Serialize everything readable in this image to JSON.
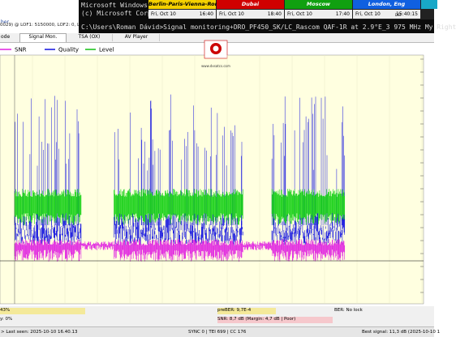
{
  "app": {
    "title_fragment": "her",
    "info": "0029) @ LOF1: 5150000, LOF2: 0, LOF3:",
    "tabs": [
      "ode",
      "Signal Mon.",
      "TSA (OX)",
      "AV Player"
    ],
    "legend": [
      "SNR",
      "Quality",
      "Level"
    ],
    "logo": "www.dxsatcs.com"
  },
  "console": {
    "lines": [
      "Microsoft Windows",
      "(c) Microsoft Corp",
      "C:\\Users\\Roman Dávid>Signal monitoring+DRO_PF450_SK/LC_Rascom QAF-1R at 2.9°E_3 975 MHz My Right"
    ]
  },
  "clocks": [
    {
      "city": "Berlin-Paris-Vienna-Roma",
      "date": "Fri, Oct 10",
      "time": "16:40"
    },
    {
      "city": "Dubai",
      "date": "Fri, Oct 10",
      "time": "18:40"
    },
    {
      "city": "Moscow",
      "date": "Fri, Oct 10",
      "time": "17:40"
    },
    {
      "city": "London, Eng",
      "date": "Fri, Oct 10",
      "dst": "DST",
      "time": "15:40:15"
    }
  ],
  "status": {
    "quality": "43%",
    "preber": "preBER: 9,7E-4",
    "ber": "BER: No lock",
    "strength": "y: 0%",
    "snr": "SNR: 8,7 dB (Margin: 4,7 dB | Poor)",
    "last_seen": "> Last seen: 2025-10-10 16.40.13",
    "sync": "SYNC 0 | TEI 699 | CC 176",
    "best": "Best signal: 11,3 dB (2025-10-10 1"
  }
}
